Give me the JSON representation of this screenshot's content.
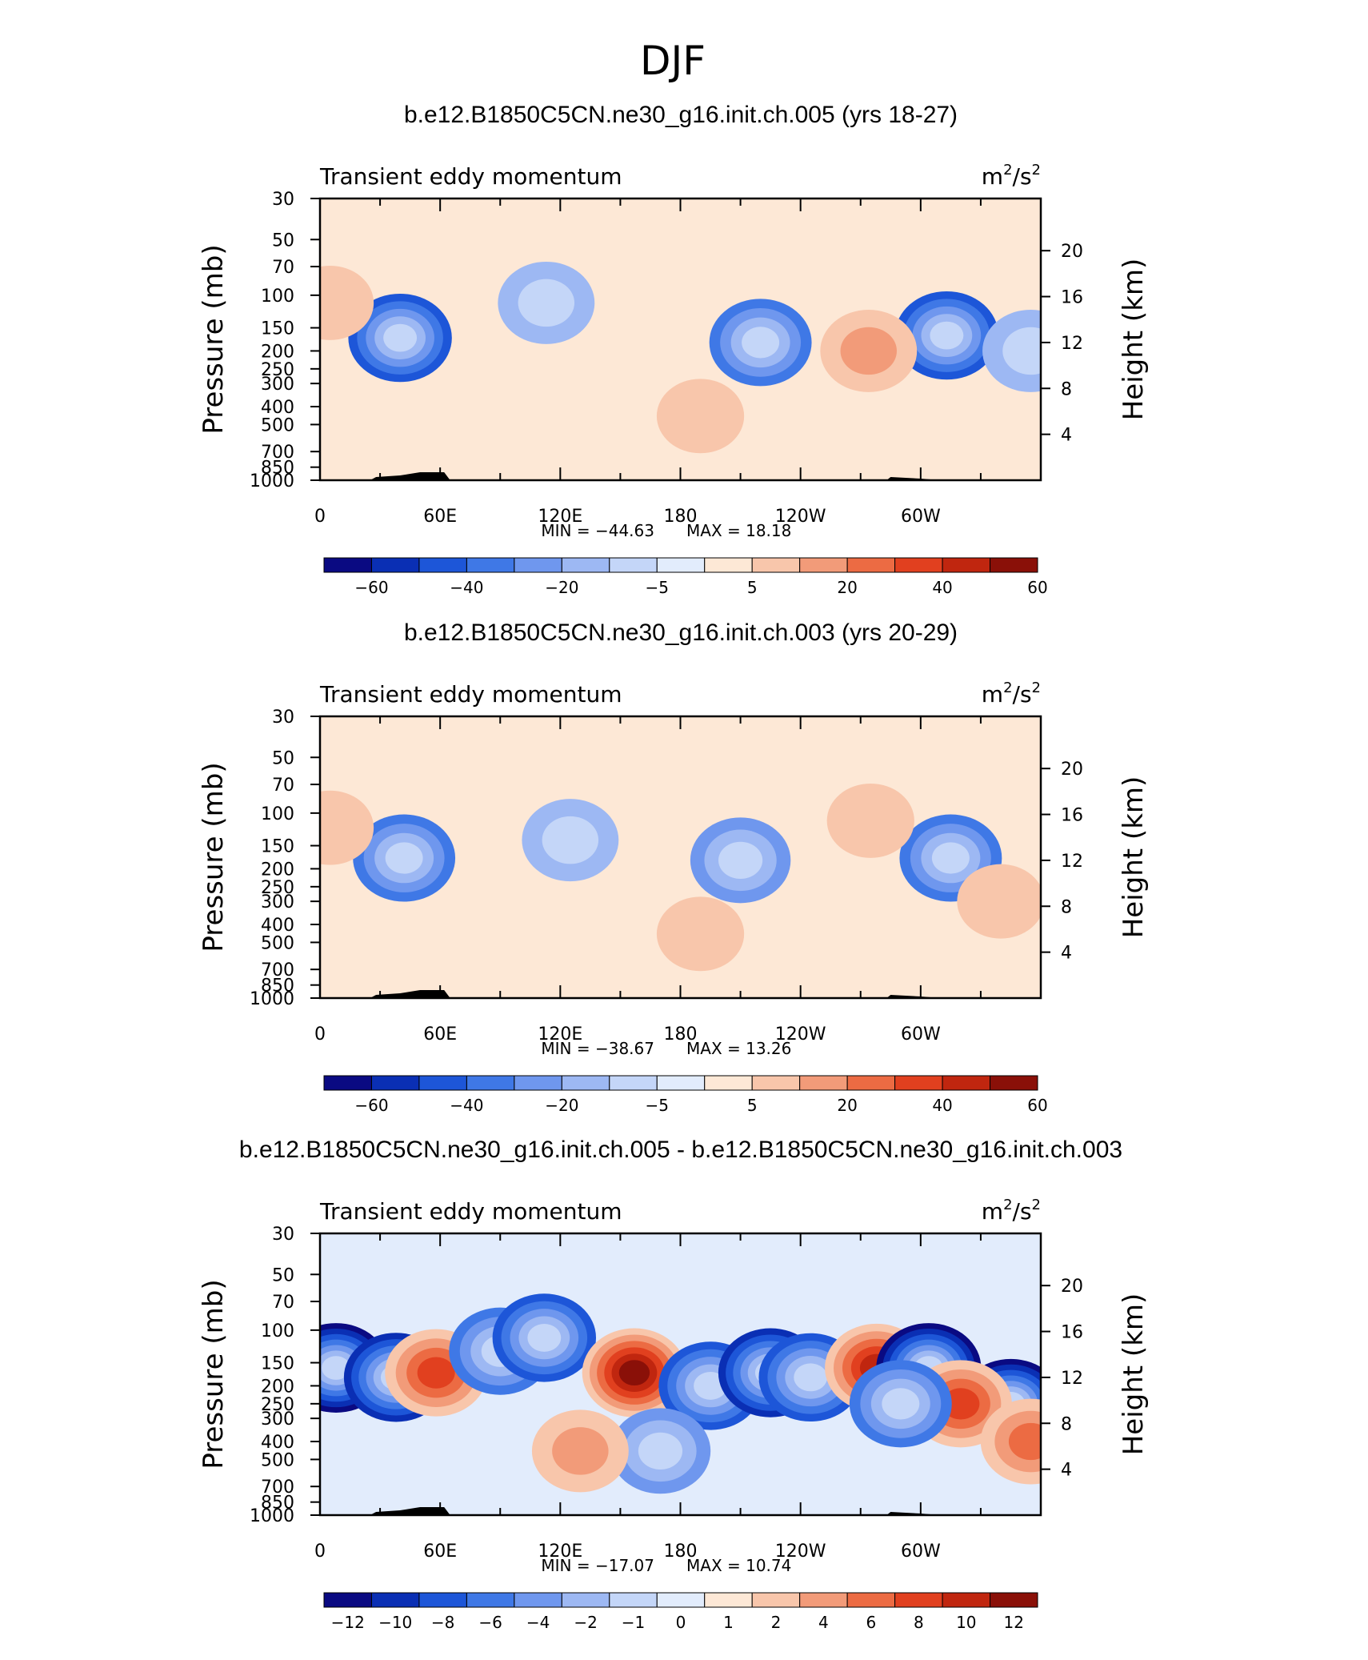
{
  "figure_title": "DJF",
  "chart_data": [
    {
      "type": "heatmap",
      "title": "b.e12.B1850C5CN.ne30_g16.init.ch.005 (yrs 18-27)",
      "left_label": "Transient eddy momentum",
      "units_base": "m",
      "units_exp1": "2",
      "units_mid": "/s",
      "units_exp2": "2",
      "ylabel": "Pressure (mb)",
      "ylabel_right": "Height (km)",
      "x_ticks": [
        "0",
        "60E",
        "120E",
        "180",
        "120W",
        "60W"
      ],
      "y_ticks": [
        30,
        50,
        70,
        100,
        150,
        200,
        250,
        300,
        400,
        500,
        700,
        850,
        1000
      ],
      "y2_ticks": [
        4,
        8,
        12,
        16,
        20
      ],
      "min_label": "MIN = −44.63",
      "max_label": "MAX = 18.18",
      "min": -44.63,
      "max": 18.18,
      "colorbar_labels": [
        "−60",
        "−40",
        "−20",
        "−5",
        "5",
        "20",
        "40",
        "60"
      ],
      "colorbar_scale": "full",
      "features": [
        {
          "lon": 40,
          "p": 170,
          "value": -40
        },
        {
          "lon": 113,
          "p": 110,
          "value": -18
        },
        {
          "lon": 220,
          "p": 180,
          "value": -35
        },
        {
          "lon": 313,
          "p": 165,
          "value": -40
        },
        {
          "lon": 355,
          "p": 200,
          "value": -15
        },
        {
          "lon": 274,
          "p": 200,
          "value": 10
        },
        {
          "lon": 190,
          "p": 450,
          "value": 8
        },
        {
          "lon": 5,
          "p": 110,
          "value": 6
        }
      ]
    },
    {
      "type": "heatmap",
      "title": "b.e12.B1850C5CN.ne30_g16.init.ch.003 (yrs 20-29)",
      "left_label": "Transient eddy momentum",
      "units_base": "m",
      "units_exp1": "2",
      "units_mid": "/s",
      "units_exp2": "2",
      "ylabel": "Pressure (mb)",
      "ylabel_right": "Height (km)",
      "x_ticks": [
        "0",
        "60E",
        "120E",
        "180",
        "120W",
        "60W"
      ],
      "y_ticks": [
        30,
        50,
        70,
        100,
        150,
        200,
        250,
        300,
        400,
        500,
        700,
        850,
        1000
      ],
      "y2_ticks": [
        4,
        8,
        12,
        16,
        20
      ],
      "min_label": "MIN = −38.67",
      "max_label": "MAX = 13.26",
      "min": -38.67,
      "max": 13.26,
      "colorbar_labels": [
        "−60",
        "−40",
        "−20",
        "−5",
        "5",
        "20",
        "40",
        "60"
      ],
      "colorbar_scale": "full",
      "features": [
        {
          "lon": 42,
          "p": 175,
          "value": -38
        },
        {
          "lon": 125,
          "p": 140,
          "value": -18
        },
        {
          "lon": 210,
          "p": 180,
          "value": -22
        },
        {
          "lon": 315,
          "p": 175,
          "value": -30
        },
        {
          "lon": 190,
          "p": 450,
          "value": 8
        },
        {
          "lon": 5,
          "p": 120,
          "value": 6
        },
        {
          "lon": 275,
          "p": 110,
          "value": 8
        },
        {
          "lon": 340,
          "p": 300,
          "value": 5
        }
      ]
    },
    {
      "type": "heatmap",
      "title": "b.e12.B1850C5CN.ne30_g16.init.ch.005 - b.e12.B1850C5CN.ne30_g16.init.ch.003",
      "left_label": "Transient eddy momentum",
      "units_base": "m",
      "units_exp1": "2",
      "units_mid": "/s",
      "units_exp2": "2",
      "ylabel": "Pressure (mb)",
      "ylabel_right": "Height (km)",
      "x_ticks": [
        "0",
        "60E",
        "120E",
        "180",
        "120W",
        "60W"
      ],
      "y_ticks": [
        30,
        50,
        70,
        100,
        150,
        200,
        250,
        300,
        400,
        500,
        700,
        850,
        1000
      ],
      "y2_ticks": [
        4,
        8,
        12,
        16,
        20
      ],
      "min_label": "MIN = −17.07",
      "max_label": "MAX = 10.74",
      "min": -17.07,
      "max": 10.74,
      "colorbar_labels": [
        "−12",
        "−10",
        "−8",
        "−6",
        "−4",
        "−2",
        "−1",
        "0",
        "1",
        "2",
        "4",
        "6",
        "8",
        "10",
        "12"
      ],
      "colorbar_scale": "diff",
      "features": [
        {
          "lon": 8,
          "p": 160,
          "value": -14
        },
        {
          "lon": 38,
          "p": 180,
          "value": -10
        },
        {
          "lon": 58,
          "p": 170,
          "value": 7
        },
        {
          "lon": 90,
          "p": 130,
          "value": -6
        },
        {
          "lon": 112,
          "p": 110,
          "value": -8
        },
        {
          "lon": 157,
          "p": 170,
          "value": 10
        },
        {
          "lon": 195,
          "p": 200,
          "value": -9
        },
        {
          "lon": 225,
          "p": 170,
          "value": -10
        },
        {
          "lon": 245,
          "p": 180,
          "value": -9
        },
        {
          "lon": 278,
          "p": 160,
          "value": 8
        },
        {
          "lon": 304,
          "p": 160,
          "value": -16
        },
        {
          "lon": 345,
          "p": 250,
          "value": -14
        },
        {
          "lon": 320,
          "p": 250,
          "value": 6
        },
        {
          "lon": 355,
          "p": 400,
          "value": 5
        },
        {
          "lon": 290,
          "p": 250,
          "value": -6
        },
        {
          "lon": 170,
          "p": 450,
          "value": -5
        },
        {
          "lon": 130,
          "p": 450,
          "value": 3
        }
      ]
    }
  ]
}
